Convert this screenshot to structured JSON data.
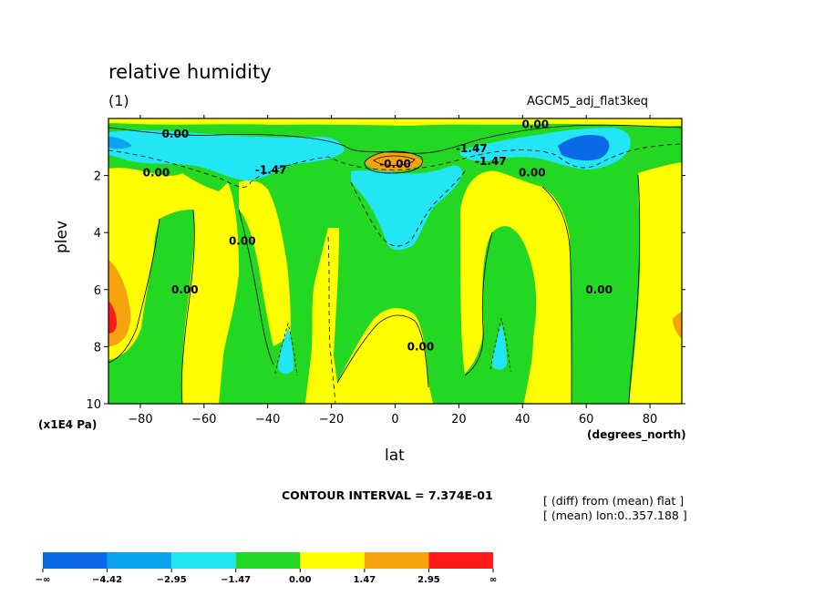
{
  "header": {
    "title": "relative humidity",
    "units": "(1)",
    "experiment": "AGCM5_adj_flat3keq"
  },
  "footer": {
    "contour_interval": "CONTOUR INTERVAL = 7.374E-01",
    "note_diff": "[ (diff) from (mean) flat ]",
    "note_mean": "[ (mean) lon:0..357.188 ]"
  },
  "colors": {
    "c0": "#0a6ae6",
    "c1": "#0aa3f0",
    "c2": "#22e6f6",
    "c3": "#22d822",
    "c4": "#ffff00",
    "c5": "#f5a20c",
    "c6": "#ff1a1a"
  },
  "chart_data": {
    "type": "heatmap",
    "title": "relative humidity",
    "subtitle": "(1)",
    "xlabel": "lat",
    "ylabel": "plev",
    "x_unit": "(degrees_north)",
    "y_unit": "(x1E4 Pa)",
    "xlim": [
      -90,
      90
    ],
    "ylim": [
      10,
      0
    ],
    "x_ticks": [
      -80,
      -60,
      -40,
      -20,
      0,
      20,
      40,
      60,
      80
    ],
    "x_tick_labels": [
      "−80",
      "−60",
      "−40",
      "−20",
      "0",
      "20",
      "40",
      "60",
      "80"
    ],
    "y_ticks": [
      2,
      4,
      6,
      8,
      10
    ],
    "y_tick_labels": [
      "2",
      "4",
      "6",
      "8",
      "10"
    ],
    "contour_interval": 0.7374,
    "contour_labels": [
      {
        "text": "0.00",
        "lat": -69,
        "plev": 0.55
      },
      {
        "text": "0.00",
        "lat": -75,
        "plev": 1.9
      },
      {
        "text": "-1.47",
        "lat": -39,
        "plev": 1.8
      },
      {
        "text": "-1.47",
        "lat": 24,
        "plev": 1.05
      },
      {
        "text": "-1.47",
        "lat": 30,
        "plev": 1.5
      },
      {
        "text": "0.00",
        "lat": 44,
        "plev": 0.2
      },
      {
        "text": "0.00",
        "lat": 43,
        "plev": 1.9
      },
      {
        "text": "-0.00",
        "lat": 0,
        "plev": 1.6
      },
      {
        "text": "0.00",
        "lat": -48,
        "plev": 4.3
      },
      {
        "text": "0.00",
        "lat": -66,
        "plev": 6.0
      },
      {
        "text": "0.00",
        "lat": 8,
        "plev": 8.0
      },
      {
        "text": "0.00",
        "lat": 64,
        "plev": 6.0
      }
    ],
    "legend": {
      "position": "bottom",
      "levels": [
        "−∞",
        "−4.42",
        "−2.95",
        "−1.47",
        "0.00",
        "1.47",
        "2.95",
        "∞"
      ],
      "colors": [
        "#0a6ae6",
        "#0aa3f0",
        "#22e6f6",
        "#22d822",
        "#ffff00",
        "#f5a20c",
        "#ff1a1a"
      ]
    }
  }
}
